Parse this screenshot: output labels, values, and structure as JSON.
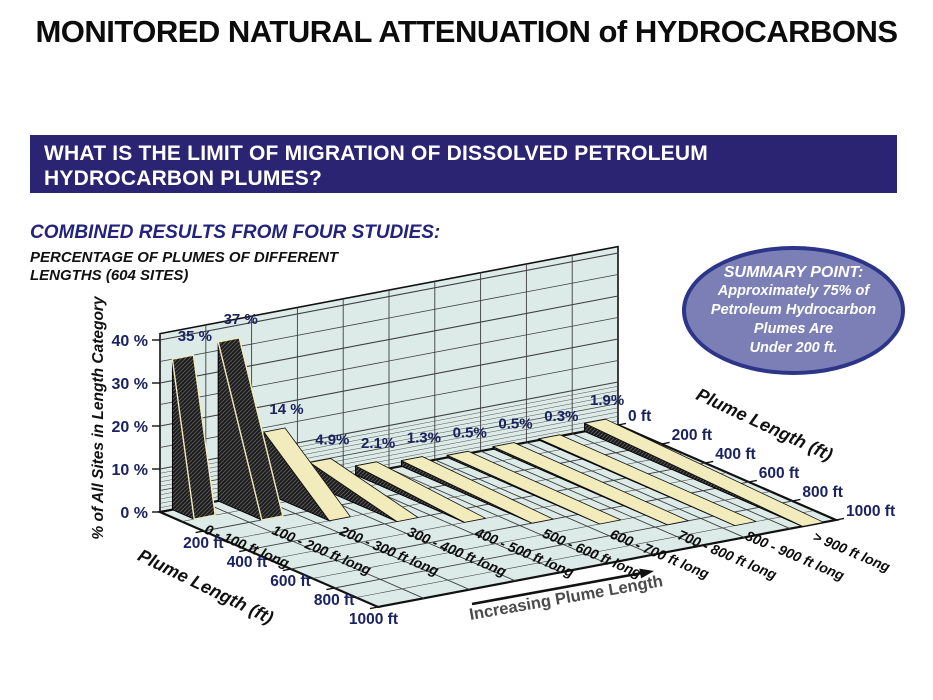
{
  "title": "MONITORED NATURAL ATTENUATION of HYDROCARBONS",
  "banner": {
    "line1": "WHAT IS THE LIMIT OF MIGRATION OF DISSOLVED PETROLEUM",
    "line2": "HYDROCARBON PLUMES?",
    "bg_color": "#2a2472",
    "text_color": "#ffffff"
  },
  "subtitle": "COMBINED RESULTS FROM FOUR STUDIES:",
  "caption": {
    "line1": "PERCENTAGE OF PLUMES OF DIFFERENT",
    "line2": "LENGTHS (604 SITES)"
  },
  "summary_oval": {
    "lines": [
      "SUMMARY POINT:",
      "Approximately 75% of",
      "Petroleum Hydrocarbon",
      "Plumes Are",
      "Under 200 ft."
    ],
    "fill": "#7b7fb6",
    "border": "#2c3588"
  },
  "chart_data": {
    "type": "bar",
    "variant": "3d-ribbon-wedge",
    "categories": [
      "0 - 100 ft long",
      "100 - 200 ft long",
      "200 - 300 ft long",
      "300 - 400 ft long",
      "400 - 500 ft long",
      "500 - 600 ft long",
      "600 - 700 ft long",
      "700 - 800 ft long",
      "800 - 900 ft long",
      "> 900 ft long"
    ],
    "values": [
      35,
      37,
      14,
      4.9,
      2.1,
      1.3,
      0.5,
      0.5,
      0.3,
      1.9
    ],
    "value_labels": [
      "35 %",
      "37 %",
      "14 %",
      "4.9%",
      "2.1%",
      "1.3%",
      "0.5%",
      "0.5%",
      "0.3%",
      "1.9%"
    ],
    "ribbon_extent_ft": [
      100,
      200,
      300,
      400,
      500,
      600,
      700,
      800,
      900,
      1000
    ],
    "ylabel": "% of All Sites in Length Category",
    "ylim": [
      0,
      40
    ],
    "y_ticks": [
      "0 %",
      "10 %",
      "20 %",
      "30 %",
      "40 %"
    ],
    "depth_axis": {
      "label": "Plume Length (ft)",
      "range_ft": [
        0,
        1000
      ],
      "left_ticks": [
        "200 ft",
        "400 ft",
        "600 ft",
        "800 ft",
        "1000 ft"
      ],
      "right_ticks": [
        "0 ft",
        "200 ft",
        "400 ft",
        "600 ft",
        "800 ft",
        "1000 ft"
      ]
    },
    "arrow_label": "Increasing Plume Length",
    "grid": true,
    "colors": {
      "plot_bg": "#dcebe7",
      "grid": "#3f3f3f",
      "outline": "#111111",
      "ribbon_top": "#f2ebbc",
      "ribbon_dark": "#1a1a1a",
      "hatch_line": "#5f5f5f",
      "tick_text": "#1b2260",
      "value_text": "#1b2260",
      "category_text": "#0d0d0d",
      "axis_title_text": "#111111",
      "arrow_text": "#4a4a4a"
    }
  }
}
